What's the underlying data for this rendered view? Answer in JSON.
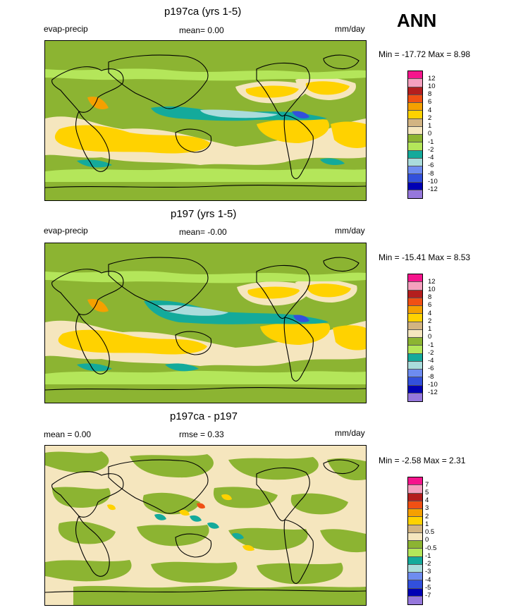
{
  "season": "ANN",
  "panels": [
    {
      "title": "p197ca (yrs 1-5)",
      "left_label": "evap-precip",
      "center_label": "mean=   0.00",
      "units": "mm/day",
      "minmax": "Min = -17.72 Max =   8.98",
      "colorbar": {
        "colors": [
          "#f5148c",
          "#f5a0be",
          "#b41e1e",
          "#f05014",
          "#f5a000",
          "#ffd200",
          "#d2b482",
          "#f5e6be",
          "#8cb432",
          "#b4e65a",
          "#14aa9b",
          "#aadcdc",
          "#6e8cf0",
          "#3250dc",
          "#0000b4",
          "#9678dc"
        ],
        "labels": [
          "12",
          "10",
          "8",
          "6",
          "4",
          "2",
          "1",
          "0",
          "-1",
          "-2",
          "-4",
          "-6",
          "-8",
          "-10",
          "-12"
        ]
      }
    },
    {
      "title": "p197 (yrs 1-5)",
      "left_label": "evap-precip",
      "center_label": "mean=  -0.00",
      "units": "mm/day",
      "minmax": "Min = -15.41 Max =   8.53",
      "colorbar": {
        "colors": [
          "#f5148c",
          "#f5a0be",
          "#b41e1e",
          "#f05014",
          "#f5a000",
          "#ffd200",
          "#d2b482",
          "#f5e6be",
          "#8cb432",
          "#b4e65a",
          "#14aa9b",
          "#aadcdc",
          "#6e8cf0",
          "#3250dc",
          "#0000b4",
          "#9678dc"
        ],
        "labels": [
          "12",
          "10",
          "8",
          "6",
          "4",
          "2",
          "1",
          "0",
          "-1",
          "-2",
          "-4",
          "-6",
          "-8",
          "-10",
          "-12"
        ]
      }
    },
    {
      "title": "p197ca - p197",
      "left_label": "mean =   0.00",
      "center_label": "rmse =   0.33",
      "units": "mm/day",
      "minmax": "Min =  -2.58 Max =   2.31",
      "colorbar": {
        "colors": [
          "#f5148c",
          "#f5a0be",
          "#b41e1e",
          "#f05014",
          "#f5a000",
          "#ffd200",
          "#d2b482",
          "#f5e6be",
          "#8cb432",
          "#b4e65a",
          "#14aa9b",
          "#aadcdc",
          "#6e8cf0",
          "#3250dc",
          "#0000b4",
          "#9678dc"
        ],
        "labels": [
          "7",
          "5",
          "4",
          "3",
          "2",
          "1",
          "0.5",
          "0",
          "-0.5",
          "-1",
          "-2",
          "-3",
          "-4",
          "-5",
          "-7"
        ]
      }
    }
  ],
  "chart_data": [
    {
      "type": "heatmap",
      "title": "p197ca (yrs 1-5)",
      "variable": "evap-precip",
      "units": "mm/day",
      "mean": 0.0,
      "min": -17.72,
      "max": 8.98,
      "contour_levels": [
        -12,
        -10,
        -8,
        -6,
        -4,
        -2,
        -1,
        0,
        1,
        2,
        4,
        6,
        8,
        10,
        12
      ],
      "projection": "global cylindrical equidistant, 0-360 lon"
    },
    {
      "type": "heatmap",
      "title": "p197 (yrs 1-5)",
      "variable": "evap-precip",
      "units": "mm/day",
      "mean": -0.0,
      "min": -15.41,
      "max": 8.53,
      "contour_levels": [
        -12,
        -10,
        -8,
        -6,
        -4,
        -2,
        -1,
        0,
        1,
        2,
        4,
        6,
        8,
        10,
        12
      ],
      "projection": "global cylindrical equidistant, 0-360 lon"
    },
    {
      "type": "heatmap",
      "title": "p197ca - p197",
      "units": "mm/day",
      "mean": 0.0,
      "rmse": 0.33,
      "min": -2.58,
      "max": 2.31,
      "contour_levels": [
        -7,
        -5,
        -4,
        -3,
        -2,
        -1,
        -0.5,
        0,
        0.5,
        1,
        2,
        3,
        4,
        5,
        7
      ],
      "projection": "global cylindrical equidistant, 0-360 lon"
    }
  ]
}
